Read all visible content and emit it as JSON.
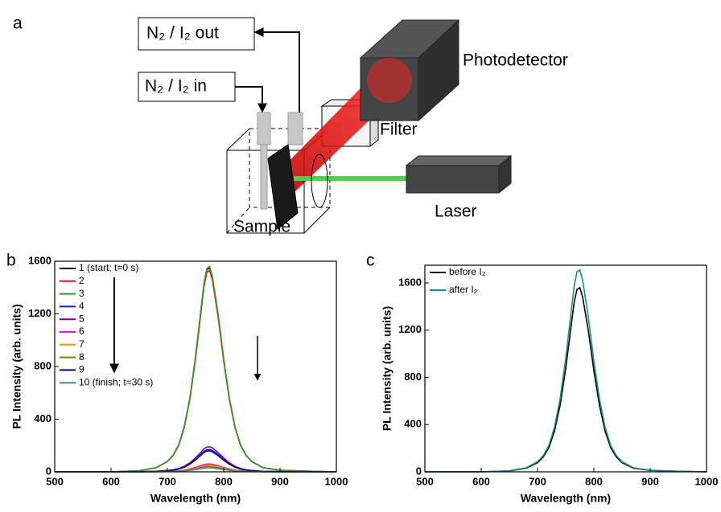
{
  "panels": [
    "a",
    "b",
    "c"
  ],
  "diagram": {
    "outlet": "N₂ / I₂ out",
    "inlet": "N₂ / I₂ in",
    "detector": "Photodetector",
    "filter": "Filter",
    "laser": "Laser",
    "sample": "Sample"
  },
  "chart_data": [
    {
      "type": "line",
      "xlabel": "Wavelength (nm)",
      "ylabel": "PL Intensity (arb. units)",
      "xlim": [
        500,
        1000
      ],
      "xticks": [
        500,
        600,
        700,
        800,
        900,
        1000
      ],
      "ylim": [
        0,
        1600
      ],
      "yticks": [
        0,
        400,
        800,
        1200,
        1600
      ],
      "legend": "upper left",
      "x": [
        500,
        550,
        600,
        650,
        680,
        700,
        710,
        720,
        730,
        740,
        750,
        760,
        765,
        770,
        775,
        780,
        790,
        800,
        810,
        820,
        830,
        840,
        850,
        870,
        900,
        950,
        1000
      ],
      "series": [
        {
          "name": "1 (start; t=0 s)",
          "color": "#000000",
          "values": [
            0,
            0,
            0,
            8,
            31,
            78,
            124,
            202,
            341,
            558,
            868,
            1240,
            1426,
            1535,
            1550,
            1473,
            1194,
            853,
            558,
            341,
            202,
            124,
            78,
            31,
            12,
            5,
            0
          ]
        },
        {
          "name": "2",
          "color": "#e8141e",
          "values": [
            0,
            0,
            0,
            8,
            31,
            77,
            122,
            199,
            337,
            551,
            857,
            1224,
            1408,
            1515,
            1530,
            1454,
            1178,
            842,
            551,
            337,
            199,
            122,
            77,
            31,
            12,
            5,
            0
          ]
        },
        {
          "name": "3",
          "color": "#2a9d2a",
          "values": [
            0,
            0,
            0,
            8,
            31,
            78,
            125,
            203,
            343,
            562,
            874,
            1248,
            1435,
            1544,
            1560,
            1482,
            1201,
            858,
            562,
            343,
            203,
            125,
            78,
            31,
            12,
            5,
            0
          ]
        },
        {
          "name": "4",
          "color": "#1a1adc",
          "values": [
            0,
            0,
            0,
            1,
            3,
            9,
            14,
            22,
            37,
            61,
            95,
            136,
            156,
            168,
            170,
            162,
            131,
            94,
            61,
            37,
            22,
            14,
            9,
            3,
            1,
            1,
            0
          ]
        },
        {
          "name": "5",
          "color": "#800080",
          "values": [
            0,
            0,
            0,
            1,
            4,
            10,
            15,
            25,
            42,
            68,
            106,
            152,
            175,
            188,
            190,
            181,
            146,
            105,
            68,
            42,
            25,
            15,
            10,
            4,
            2,
            1,
            0
          ]
        },
        {
          "name": "6",
          "color": "#ff00ff",
          "values": [
            0,
            0,
            0,
            0,
            1,
            3,
            5,
            8,
            13,
            22,
            34,
            48,
            55,
            59,
            60,
            57,
            46,
            33,
            22,
            13,
            8,
            5,
            3,
            1,
            0,
            0,
            0
          ]
        },
        {
          "name": "7",
          "color": "#ff8c00",
          "values": [
            0,
            0,
            0,
            0,
            1,
            3,
            4,
            7,
            11,
            18,
            28,
            40,
            46,
            50,
            50,
            48,
            39,
            28,
            18,
            11,
            7,
            4,
            3,
            1,
            0,
            0,
            0
          ]
        },
        {
          "name": "8",
          "color": "#808000",
          "values": [
            0,
            0,
            0,
            0,
            1,
            2,
            3,
            5,
            9,
            14,
            22,
            32,
            37,
            40,
            40,
            38,
            31,
            22,
            14,
            9,
            5,
            3,
            2,
            1,
            0,
            0,
            0
          ]
        },
        {
          "name": "9",
          "color": "#000080",
          "values": [
            0,
            0,
            0,
            1,
            3,
            8,
            13,
            21,
            35,
            58,
            90,
            128,
            147,
            158,
            160,
            152,
            123,
            88,
            58,
            35,
            21,
            13,
            8,
            3,
            1,
            0,
            0
          ]
        },
        {
          "name": "10 (finish; t=30 s)",
          "color": "#3f8f7f",
          "values": [
            0,
            0,
            0,
            0,
            1,
            2,
            2,
            4,
            7,
            11,
            17,
            24,
            28,
            30,
            30,
            29,
            23,
            17,
            11,
            7,
            4,
            2,
            2,
            1,
            0,
            0,
            0
          ]
        }
      ]
    },
    {
      "type": "line",
      "xlabel": "Wavelength (nm)",
      "ylabel": "PL Intensity (arb. units)",
      "xlim": [
        500,
        1000
      ],
      "xticks": [
        500,
        600,
        700,
        800,
        900,
        1000
      ],
      "ylim": [
        0,
        1750
      ],
      "yticks": [
        0,
        400,
        800,
        1200,
        1600
      ],
      "legend": "upper left",
      "x": [
        500,
        550,
        600,
        650,
        680,
        700,
        710,
        720,
        730,
        740,
        750,
        760,
        765,
        770,
        775,
        780,
        790,
        800,
        810,
        820,
        830,
        840,
        850,
        870,
        900,
        950,
        1000
      ],
      "series": [
        {
          "name": "before I₂",
          "color": "#000000",
          "values": [
            0,
            0,
            0,
            8,
            31,
            78,
            125,
            203,
            343,
            562,
            874,
            1248,
            1435,
            1544,
            1560,
            1482,
            1201,
            858,
            562,
            343,
            203,
            125,
            78,
            31,
            12,
            5,
            0
          ]
        },
        {
          "name": "after I₂",
          "color": "#1a8a8a",
          "values": [
            0,
            0,
            0,
            9,
            34,
            86,
            137,
            222,
            376,
            616,
            958,
            1368,
            1573,
            1693,
            1710,
            1625,
            1317,
            941,
            616,
            376,
            222,
            137,
            86,
            34,
            14,
            5,
            0
          ]
        }
      ]
    }
  ]
}
